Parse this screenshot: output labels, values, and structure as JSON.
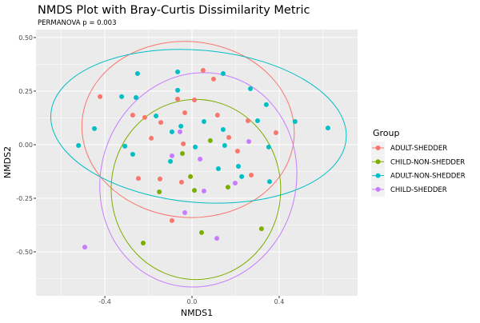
{
  "chart_data": {
    "type": "scatter",
    "title": "NMDS Plot with Bray-Curtis Dissimilarity Metric",
    "subtitle": "PERMANOVA p = 0.003",
    "xlabel": "NMDS1",
    "ylabel": "NMDS2",
    "xlim": [
      -0.716,
      0.76
    ],
    "ylim": [
      -0.705,
      0.537
    ],
    "x_ticks": [
      -0.4,
      0.0,
      0.4
    ],
    "x_tick_labels": [
      "-0.4",
      "0.0",
      "0.4"
    ],
    "y_ticks": [
      0.5,
      0.25,
      0.0,
      -0.25,
      -0.5
    ],
    "y_tick_labels": [
      "0.50",
      "0.25",
      "0.00",
      "-0.25",
      "-0.50"
    ],
    "grid": true,
    "legend": {
      "title": "Group",
      "placement": "right"
    },
    "series": [
      {
        "name": "ADULT-SHEDDER",
        "color": "#F8766D",
        "ellipse": {
          "center": [
            -0.018,
            0.071
          ],
          "radii": [
            0.488,
            0.41
          ],
          "angle": 5
        },
        "points": [
          [
            -0.422,
            0.224
          ],
          [
            -0.272,
            0.138
          ],
          [
            -0.217,
            0.127
          ],
          [
            -0.143,
            0.104
          ],
          [
            -0.187,
            0.03
          ],
          [
            -0.066,
            0.213
          ],
          [
            -0.033,
            0.149
          ],
          [
            -0.04,
            0.004
          ],
          [
            0.011,
            0.209
          ],
          [
            0.051,
            0.347
          ],
          [
            0.099,
            0.306
          ],
          [
            0.117,
            0.138
          ],
          [
            0.257,
            0.112
          ],
          [
            0.169,
            0.034
          ],
          [
            0.385,
            0.056
          ],
          [
            0.209,
            -0.03
          ],
          [
            -0.246,
            -0.157
          ],
          [
            -0.147,
            -0.16
          ],
          [
            -0.048,
            -0.175
          ],
          [
            -0.092,
            -0.354
          ],
          [
            0.272,
            -0.142
          ]
        ]
      },
      {
        "name": "CHILD-NON-SHEDDER",
        "color": "#7CAE00",
        "ellipse": {
          "center": [
            0.018,
            -0.209
          ],
          "radii": [
            0.389,
            0.42
          ],
          "angle": 0
        },
        "points": [
          [
            0.084,
            0.019
          ],
          [
            -0.044,
            -0.041
          ],
          [
            -0.007,
            -0.149
          ],
          [
            -0.15,
            -0.22
          ],
          [
            0.011,
            -0.213
          ],
          [
            0.165,
            -0.198
          ],
          [
            -0.224,
            -0.459
          ],
          [
            0.044,
            -0.41
          ],
          [
            0.319,
            -0.392
          ]
        ]
      },
      {
        "name": "ADULT-NON-SHEDDER",
        "color": "#00BFC4",
        "ellipse": {
          "center": [
            0.03,
            0.086
          ],
          "radii": [
            0.68,
            0.355
          ],
          "angle": 5
        },
        "points": [
          [
            -0.25,
            0.332
          ],
          [
            -0.066,
            0.34
          ],
          [
            -0.066,
            0.254
          ],
          [
            -0.323,
            0.224
          ],
          [
            -0.257,
            0.22
          ],
          [
            -0.165,
            0.134
          ],
          [
            -0.051,
            0.086
          ],
          [
            -0.092,
            0.06
          ],
          [
            -0.448,
            0.075
          ],
          [
            -0.521,
            -0.004
          ],
          [
            -0.308,
            -0.007
          ],
          [
            -0.272,
            -0.045
          ],
          [
            0.015,
            -0.011
          ],
          [
            0.143,
            0.332
          ],
          [
            0.268,
            0.261
          ],
          [
            0.341,
            0.187
          ],
          [
            0.055,
            0.108
          ],
          [
            0.301,
            0.112
          ],
          [
            0.143,
            0.071
          ],
          [
            0.473,
            0.108
          ],
          [
            0.624,
            0.078
          ],
          [
            0.15,
            -0.004
          ],
          [
            0.352,
            -0.011
          ],
          [
            -0.099,
            -0.078
          ],
          [
            0.121,
            -0.112
          ],
          [
            0.213,
            -0.101
          ],
          [
            0.228,
            -0.149
          ],
          [
            0.356,
            -0.172
          ]
        ]
      },
      {
        "name": "CHILD-SHEDDER",
        "color": "#C77CFF",
        "ellipse": {
          "center": [
            0.029,
            -0.164
          ],
          "radii": [
            0.448,
            0.504
          ],
          "angle": 17
        },
        "points": [
          [
            -0.055,
            0.06
          ],
          [
            0.261,
            0.015
          ],
          [
            -0.092,
            -0.052
          ],
          [
            0.037,
            -0.067
          ],
          [
            0.198,
            -0.179
          ],
          [
            0.055,
            -0.216
          ],
          [
            -0.033,
            -0.317
          ],
          [
            -0.492,
            -0.478
          ],
          [
            0.114,
            -0.437
          ]
        ]
      }
    ]
  }
}
